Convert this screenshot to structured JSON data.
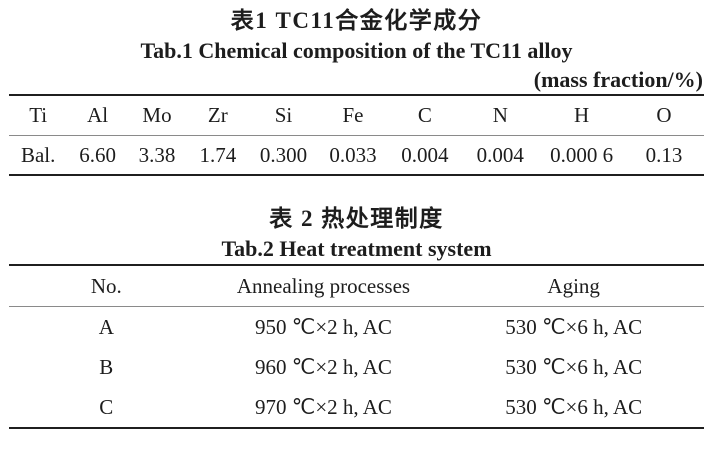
{
  "page": {
    "background": "#ffffff",
    "text_color": "#1d1d1d",
    "rule_thick_color": "#1f1f1f",
    "rule_thin_color": "#8a8a8a"
  },
  "table1": {
    "title_zh": "表1 TC11合金化学成分",
    "title_en": "Tab.1 Chemical composition of the TC11 alloy",
    "unit_note": "(mass fraction/%)",
    "columns": [
      "Ti",
      "Al",
      "Mo",
      "Zr",
      "Si",
      "Fe",
      "C",
      "N",
      "H",
      "O"
    ],
    "rows": [
      [
        "Bal.",
        "6.60",
        "3.38",
        "1.74",
        "0.300",
        "0.033",
        "0.004",
        "0.004",
        "0.000 6",
        "0.13"
      ]
    ]
  },
  "table2": {
    "title_zh": "表 2 热处理制度",
    "title_en": "Tab.2 Heat treatment system",
    "columns": [
      "No.",
      "Annealing processes",
      "Aging"
    ],
    "rows": [
      [
        "A",
        "950 ℃×2 h, AC",
        "530 ℃×6 h, AC"
      ],
      [
        "B",
        "960 ℃×2 h, AC",
        "530 ℃×6 h, AC"
      ],
      [
        "C",
        "970 ℃×2 h, AC",
        "530 ℃×6 h, AC"
      ]
    ]
  }
}
